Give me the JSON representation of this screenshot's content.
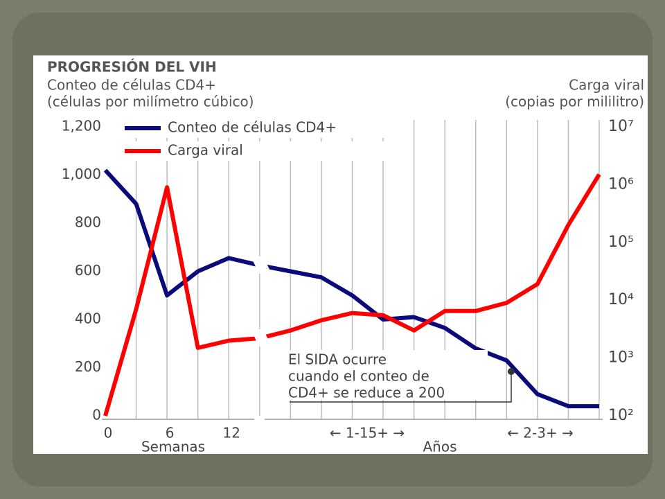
{
  "chart_data": {
    "type": "line",
    "title": "PROGRESIÓN DEL VIH",
    "y_label": [
      "Conteo de células CD4+",
      "(células por milímetro cúbico)"
    ],
    "y2_label": [
      "Carga viral",
      "(copias por mililitro)"
    ],
    "categories": [
      "0",
      null,
      "6",
      null,
      "12",
      null,
      null,
      null,
      null,
      null,
      null,
      null,
      null,
      null,
      null,
      null,
      null
    ],
    "series": [
      {
        "name": "Conteo de células CD4+",
        "color": "#0a0a7a",
        "values": [
          1020,
          880,
          500,
          600,
          655,
          625,
          600,
          575,
          500,
          400,
          410,
          365,
          280,
          230,
          90,
          40,
          40
        ]
      },
      {
        "name": "Carga viral",
        "color": "#ff0000",
        "axis": "y2",
        "values": [
          100,
          7000,
          900000,
          1500,
          2000,
          2200,
          3000,
          4500,
          6000,
          5500,
          3000,
          6500,
          6500,
          9000,
          19000,
          200000,
          1500000
        ]
      }
    ],
    "ylim": [
      0,
      1200
    ],
    "yticks": [
      0,
      200,
      400,
      600,
      800,
      {
        "value": 1000,
        "label": "1,000"
      },
      {
        "value": 1200,
        "label": "1,200"
      }
    ],
    "y2lim": [
      100,
      10000000
    ],
    "y2scale": "log",
    "y2ticks": [
      {
        "value": 100,
        "label": "10²"
      },
      {
        "value": 1000,
        "label": "10³"
      },
      {
        "value": 10000,
        "label": "10⁴"
      },
      {
        "value": 100000,
        "label": "10⁵"
      },
      {
        "value": 1000000,
        "label": "10⁶"
      },
      {
        "value": 10000000,
        "label": "10⁷"
      }
    ],
    "x_annotations": [
      "Semanas",
      "← 1-15+ →",
      "Años",
      "← 2-3+ →"
    ],
    "annotation": [
      "El SIDA ocurre",
      "cuando el conteo de",
      "CD4+ se reduce a 200"
    ],
    "legend": "upper left"
  }
}
